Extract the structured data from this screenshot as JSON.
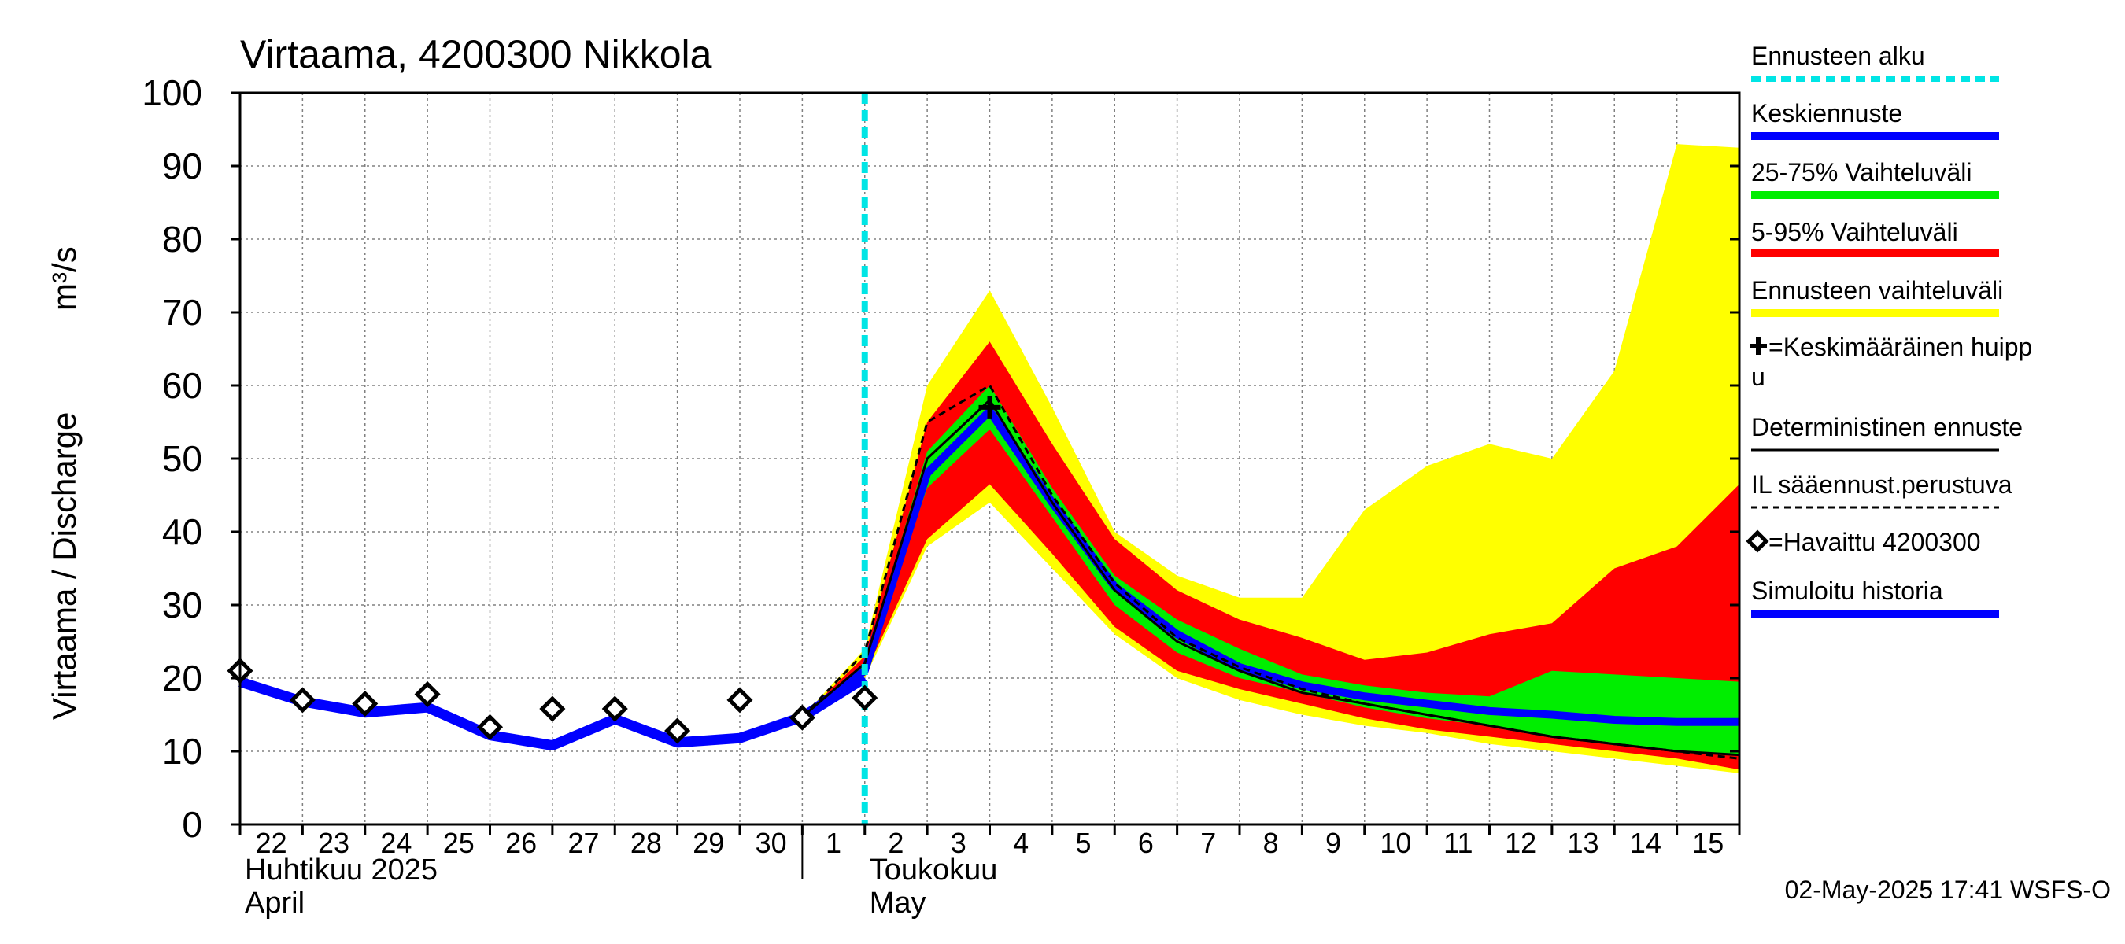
{
  "chart_data": {
    "type": "area",
    "title": "Virtaama, 4200300 Nikkola",
    "ylabel": "Virtaama / Discharge",
    "yunit": "m³/s",
    "ylim": [
      0,
      100
    ],
    "yticks": [
      0,
      10,
      20,
      30,
      40,
      50,
      60,
      70,
      80,
      90,
      100
    ],
    "x": [
      "2025-04-22",
      "2025-04-23",
      "2025-04-24",
      "2025-04-25",
      "2025-04-26",
      "2025-04-27",
      "2025-04-28",
      "2025-04-29",
      "2025-04-30",
      "2025-05-01",
      "2025-05-02",
      "2025-05-03",
      "2025-05-04",
      "2025-05-05",
      "2025-05-06",
      "2025-05-07",
      "2025-05-08",
      "2025-05-09",
      "2025-05-10",
      "2025-05-11",
      "2025-05-12",
      "2025-05-13",
      "2025-05-14",
      "2025-05-15",
      "2025-05-16"
    ],
    "xtick_labels": [
      "22",
      "23",
      "24",
      "25",
      "26",
      "27",
      "28",
      "29",
      "30",
      "1",
      "2",
      "3",
      "4",
      "5",
      "6",
      "7",
      "8",
      "9",
      "10",
      "11",
      "12",
      "13",
      "14",
      "15"
    ],
    "month_labels": [
      {
        "line1": "Huhtikuu  2025",
        "line2": "April"
      },
      {
        "line1": "Toukokuu",
        "line2": "May"
      }
    ],
    "forecast_start": "2025-05-02",
    "grid": true,
    "legend_position": "right",
    "timestamp": "02-May-2025 17:41 WSFS-O",
    "series": [
      {
        "name": "Simuloitu historia",
        "kind": "line",
        "color": "#0000ff",
        "points": [
          [
            "2025-04-22",
            19.5
          ],
          [
            "2025-04-23",
            16.8
          ],
          [
            "2025-04-24",
            15.3
          ],
          [
            "2025-04-25",
            16.0
          ],
          [
            "2025-04-26",
            12.2
          ],
          [
            "2025-04-27",
            10.8
          ],
          [
            "2025-04-28",
            14.4
          ],
          [
            "2025-04-29",
            11.2
          ],
          [
            "2025-04-30",
            11.8
          ],
          [
            "2025-05-01",
            14.7
          ],
          [
            "2025-05-02",
            20.0
          ]
        ]
      },
      {
        "name": "=Havaittu 4200300",
        "kind": "markers",
        "color": "#000000",
        "points": [
          [
            "2025-04-22",
            21.0
          ],
          [
            "2025-04-23",
            17.0
          ],
          [
            "2025-04-24",
            16.5
          ],
          [
            "2025-04-25",
            17.8
          ],
          [
            "2025-04-26",
            13.3
          ],
          [
            "2025-04-27",
            15.8
          ],
          [
            "2025-04-28",
            15.8
          ],
          [
            "2025-04-29",
            12.8
          ],
          [
            "2025-04-30",
            17.0
          ],
          [
            "2025-05-01",
            14.6
          ],
          [
            "2025-05-02",
            17.3
          ]
        ]
      },
      {
        "name": "Ennusteen vaihteluväli",
        "kind": "band",
        "color": "#ffff00",
        "lower": [
          [
            "2025-05-01",
            14.7
          ],
          [
            "2025-05-02",
            20.0
          ],
          [
            "2025-05-03",
            38.0
          ],
          [
            "2025-05-04",
            44.0
          ],
          [
            "2025-05-05",
            35.0
          ],
          [
            "2025-05-06",
            26.0
          ],
          [
            "2025-05-07",
            20.0
          ],
          [
            "2025-05-08",
            17.0
          ],
          [
            "2025-05-09",
            15.0
          ],
          [
            "2025-05-10",
            13.5
          ],
          [
            "2025-05-11",
            12.5
          ],
          [
            "2025-05-12",
            11.0
          ],
          [
            "2025-05-13",
            10.0
          ],
          [
            "2025-05-14",
            9.0
          ],
          [
            "2025-05-15",
            8.0
          ],
          [
            "2025-05-16",
            7.0
          ]
        ],
        "upper": [
          [
            "2025-05-01",
            14.7
          ],
          [
            "2025-05-02",
            24.0
          ],
          [
            "2025-05-03",
            60.0
          ],
          [
            "2025-05-04",
            73.0
          ],
          [
            "2025-05-05",
            57.0
          ],
          [
            "2025-05-06",
            40.0
          ],
          [
            "2025-05-07",
            34.0
          ],
          [
            "2025-05-08",
            31.0
          ],
          [
            "2025-05-09",
            31.0
          ],
          [
            "2025-05-10",
            43.0
          ],
          [
            "2025-05-11",
            49.0
          ],
          [
            "2025-05-12",
            52.0
          ],
          [
            "2025-05-13",
            50.0
          ],
          [
            "2025-05-14",
            62.0
          ],
          [
            "2025-05-15",
            93.0
          ],
          [
            "2025-05-16",
            92.5
          ]
        ]
      },
      {
        "name": "5-95% Vaihteluväli",
        "kind": "band",
        "color": "#ff0000",
        "lower": [
          [
            "2025-05-01",
            14.7
          ],
          [
            "2025-05-02",
            20.5
          ],
          [
            "2025-05-03",
            39.0
          ],
          [
            "2025-05-04",
            46.5
          ],
          [
            "2025-05-05",
            37.0
          ],
          [
            "2025-05-06",
            27.0
          ],
          [
            "2025-05-07",
            21.0
          ],
          [
            "2025-05-08",
            18.5
          ],
          [
            "2025-05-09",
            16.5
          ],
          [
            "2025-05-10",
            14.5
          ],
          [
            "2025-05-11",
            13.0
          ],
          [
            "2025-05-12",
            12.0
          ],
          [
            "2025-05-13",
            11.0
          ],
          [
            "2025-05-14",
            10.0
          ],
          [
            "2025-05-15",
            9.0
          ],
          [
            "2025-05-16",
            7.5
          ]
        ],
        "upper": [
          [
            "2025-05-01",
            14.7
          ],
          [
            "2025-05-02",
            23.0
          ],
          [
            "2025-05-03",
            55.0
          ],
          [
            "2025-05-04",
            66.0
          ],
          [
            "2025-05-05",
            52.0
          ],
          [
            "2025-05-06",
            39.0
          ],
          [
            "2025-05-07",
            32.0
          ],
          [
            "2025-05-08",
            28.0
          ],
          [
            "2025-05-09",
            25.5
          ],
          [
            "2025-05-10",
            22.5
          ],
          [
            "2025-05-11",
            23.5
          ],
          [
            "2025-05-12",
            26.0
          ],
          [
            "2025-05-13",
            27.5
          ],
          [
            "2025-05-14",
            35.0
          ],
          [
            "2025-05-15",
            38.0
          ],
          [
            "2025-05-16",
            46.5
          ]
        ]
      },
      {
        "name": "25-75% Vaihteluväli",
        "kind": "band",
        "color": "#00ee00",
        "lower": [
          [
            "2025-05-01",
            14.7
          ],
          [
            "2025-05-02",
            21.0
          ],
          [
            "2025-05-03",
            46.0
          ],
          [
            "2025-05-04",
            54.0
          ],
          [
            "2025-05-05",
            42.0
          ],
          [
            "2025-05-06",
            30.0
          ],
          [
            "2025-05-07",
            23.5
          ],
          [
            "2025-05-08",
            20.0
          ],
          [
            "2025-05-09",
            18.0
          ],
          [
            "2025-05-10",
            16.0
          ],
          [
            "2025-05-11",
            14.5
          ],
          [
            "2025-05-12",
            13.5
          ],
          [
            "2025-05-13",
            12.0
          ],
          [
            "2025-05-14",
            11.0
          ],
          [
            "2025-05-15",
            10.0
          ],
          [
            "2025-05-16",
            9.5
          ]
        ],
        "upper": [
          [
            "2025-05-01",
            14.7
          ],
          [
            "2025-05-02",
            22.0
          ],
          [
            "2025-05-03",
            51.0
          ],
          [
            "2025-05-04",
            60.0
          ],
          [
            "2025-05-05",
            46.0
          ],
          [
            "2025-05-06",
            34.0
          ],
          [
            "2025-05-07",
            28.0
          ],
          [
            "2025-05-08",
            24.0
          ],
          [
            "2025-05-09",
            20.5
          ],
          [
            "2025-05-10",
            19.0
          ],
          [
            "2025-05-11",
            18.0
          ],
          [
            "2025-05-12",
            17.5
          ],
          [
            "2025-05-13",
            21.0
          ],
          [
            "2025-05-14",
            20.5
          ],
          [
            "2025-05-15",
            20.0
          ],
          [
            "2025-05-16",
            19.5
          ]
        ]
      },
      {
        "name": "Keskiennuste",
        "kind": "line",
        "color": "#0000ff",
        "points": [
          [
            "2025-05-01",
            14.7
          ],
          [
            "2025-05-02",
            21.0
          ],
          [
            "2025-05-03",
            48.0
          ],
          [
            "2025-05-04",
            56.5
          ],
          [
            "2025-05-05",
            44.0
          ],
          [
            "2025-05-06",
            32.5
          ],
          [
            "2025-05-07",
            26.0
          ],
          [
            "2025-05-08",
            21.5
          ],
          [
            "2025-05-09",
            19.0
          ],
          [
            "2025-05-10",
            17.5
          ],
          [
            "2025-05-11",
            16.5
          ],
          [
            "2025-05-12",
            15.5
          ],
          [
            "2025-05-13",
            15.0
          ],
          [
            "2025-05-14",
            14.3
          ],
          [
            "2025-05-15",
            14.0
          ],
          [
            "2025-05-16",
            14.0
          ]
        ]
      },
      {
        "name": "Deterministinen ennuste",
        "kind": "line",
        "color": "#000000",
        "points": [
          [
            "2025-05-01",
            14.7
          ],
          [
            "2025-05-02",
            22.0
          ],
          [
            "2025-05-03",
            50.0
          ],
          [
            "2025-05-04",
            58.0
          ],
          [
            "2025-05-05",
            44.0
          ],
          [
            "2025-05-06",
            32.0
          ],
          [
            "2025-05-07",
            25.0
          ],
          [
            "2025-05-08",
            21.0
          ],
          [
            "2025-05-09",
            18.0
          ],
          [
            "2025-05-10",
            16.5
          ],
          [
            "2025-05-11",
            15.0
          ],
          [
            "2025-05-12",
            13.5
          ],
          [
            "2025-05-13",
            12.0
          ],
          [
            "2025-05-14",
            11.0
          ],
          [
            "2025-05-15",
            10.0
          ],
          [
            "2025-05-16",
            9.5
          ]
        ]
      },
      {
        "name": "IL sääennust.perustuva",
        "kind": "dashed-line",
        "color": "#000000",
        "points": [
          [
            "2025-05-01",
            14.7
          ],
          [
            "2025-05-02",
            23.5
          ],
          [
            "2025-05-03",
            55.0
          ],
          [
            "2025-05-04",
            60.0
          ],
          [
            "2025-05-05",
            45.0
          ],
          [
            "2025-05-06",
            33.0
          ],
          [
            "2025-05-07",
            25.5
          ],
          [
            "2025-05-08",
            21.5
          ],
          [
            "2025-05-09",
            18.5
          ],
          [
            "2025-05-10",
            16.5
          ],
          [
            "2025-05-11",
            15.0
          ],
          [
            "2025-05-12",
            13.5
          ],
          [
            "2025-05-13",
            12.0
          ],
          [
            "2025-05-14",
            11.0
          ],
          [
            "2025-05-15",
            10.0
          ],
          [
            "2025-05-16",
            9.0
          ]
        ]
      },
      {
        "name": "=Keskimääräinen huippu",
        "kind": "peak-marker",
        "color": "#000000",
        "points": [
          [
            "2025-05-04",
            57.0
          ]
        ]
      }
    ],
    "legend": [
      {
        "label": "Ennusteen alku",
        "swatch": "dotted",
        "color": "#00e5e5"
      },
      {
        "label": "Keskiennuste",
        "swatch": "line",
        "color": "#0000ff"
      },
      {
        "label": "25-75% Vaihteluväli",
        "swatch": "line",
        "color": "#00ee00"
      },
      {
        "label": "5-95% Vaihteluväli",
        "swatch": "line",
        "color": "#ff0000"
      },
      {
        "label": "Ennusteen vaihteluväli",
        "swatch": "line",
        "color": "#ffff00"
      },
      {
        "label": "=Keskimääräinen huipp",
        "label2": "u",
        "swatch": "plus",
        "color": "#000000"
      },
      {
        "label": "Deterministinen ennuste",
        "swatch": "thin",
        "color": "#000000"
      },
      {
        "label": "IL sääennust.perustuva",
        "swatch": "dashed",
        "color": "#000000"
      },
      {
        "label": "=Havaittu 4200300",
        "swatch": "diamond",
        "color": "#000000"
      },
      {
        "label": "Simuloitu historia",
        "swatch": "line",
        "color": "#0000ff"
      }
    ]
  }
}
